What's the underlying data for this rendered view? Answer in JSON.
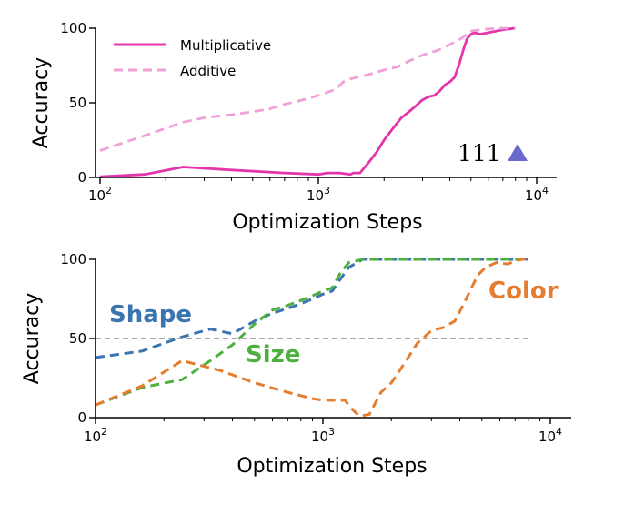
{
  "chart_data": [
    {
      "type": "line",
      "xlabel": "Optimization Steps",
      "ylabel": "Accuracy",
      "xscale": "log",
      "xlim": [
        100,
        12000
      ],
      "ylim": [
        0,
        100
      ],
      "xticks": [
        100,
        1000,
        10000
      ],
      "xtick_labels": [
        "10",
        "10",
        "10"
      ],
      "xtick_exponents": [
        "2",
        "3",
        "4"
      ],
      "yticks": [
        0,
        50,
        100
      ],
      "ytick_labels": [
        "0",
        "50",
        "100"
      ],
      "legend": {
        "placement": "top-left",
        "entries": [
          "Multiplicative",
          "Additive"
        ]
      },
      "annotation": {
        "text": "111",
        "marker": "triangle",
        "marker_color": "#6a6acd"
      },
      "series": [
        {
          "name": "Multiplicative",
          "color": "#e535ab",
          "dash": "solid",
          "points": [
            [
              100,
              0.5
            ],
            [
              160,
              2
            ],
            [
              240,
              7
            ],
            [
              400,
              5
            ],
            [
              700,
              3
            ],
            [
              1000,
              2
            ],
            [
              1100,
              3
            ],
            [
              1250,
              3
            ],
            [
              1400,
              2
            ],
            [
              1450,
              3
            ],
            [
              1550,
              3
            ],
            [
              1700,
              10
            ],
            [
              1850,
              17
            ],
            [
              2000,
              25
            ],
            [
              2200,
              33
            ],
            [
              2400,
              40
            ],
            [
              2600,
              44
            ],
            [
              2800,
              48
            ],
            [
              3000,
              52
            ],
            [
              3200,
              54
            ],
            [
              3400,
              55
            ],
            [
              3600,
              58
            ],
            [
              3800,
              62
            ],
            [
              4000,
              64
            ],
            [
              4200,
              67
            ],
            [
              4400,
              75
            ],
            [
              4600,
              85
            ],
            [
              4800,
              93
            ],
            [
              5000,
              96
            ],
            [
              5200,
              97
            ],
            [
              5500,
              96
            ],
            [
              6000,
              97
            ],
            [
              6500,
              98
            ],
            [
              7000,
              99
            ],
            [
              7500,
              99.5
            ],
            [
              8000,
              100
            ]
          ]
        },
        {
          "name": "Additive",
          "color": "#f1a0d8",
          "dash": "dashed",
          "points": [
            [
              100,
              18
            ],
            [
              160,
              28
            ],
            [
              240,
              37
            ],
            [
              300,
              40
            ],
            [
              400,
              42
            ],
            [
              500,
              44
            ],
            [
              600,
              46
            ],
            [
              700,
              49
            ],
            [
              800,
              51
            ],
            [
              900,
              53
            ],
            [
              1000,
              55
            ],
            [
              1100,
              57
            ],
            [
              1200,
              59
            ],
            [
              1300,
              64
            ],
            [
              1400,
              66
            ],
            [
              1600,
              68
            ],
            [
              1800,
              70
            ],
            [
              2000,
              72
            ],
            [
              2300,
              74
            ],
            [
              2600,
              78
            ],
            [
              3000,
              82
            ],
            [
              3500,
              85
            ],
            [
              4000,
              89
            ],
            [
              4500,
              93
            ],
            [
              5000,
              98
            ],
            [
              5500,
              99
            ],
            [
              6000,
              99.5
            ],
            [
              7000,
              100
            ],
            [
              8000,
              100
            ]
          ]
        }
      ]
    },
    {
      "type": "line",
      "xlabel": "Optimization Steps",
      "ylabel": "Accuracy",
      "xscale": "log",
      "xlim": [
        100,
        12000
      ],
      "ylim": [
        0,
        100
      ],
      "xticks": [
        100,
        1000,
        10000
      ],
      "xtick_labels": [
        "10",
        "10",
        "10"
      ],
      "xtick_exponents": [
        "2",
        "3",
        "4"
      ],
      "yticks": [
        0,
        50,
        100
      ],
      "ytick_labels": [
        "0",
        "50",
        "100"
      ],
      "reference_line": {
        "y": 50,
        "style": "dashed",
        "color": "#888888"
      },
      "series": [
        {
          "name": "Shape",
          "color": "#3b75af",
          "dash": "dashed",
          "points": [
            [
              100,
              38
            ],
            [
              160,
              42
            ],
            [
              240,
              51
            ],
            [
              320,
              56
            ],
            [
              400,
              53
            ],
            [
              500,
              61
            ],
            [
              600,
              66
            ],
            [
              700,
              69
            ],
            [
              800,
              72
            ],
            [
              900,
              75
            ],
            [
              1000,
              78
            ],
            [
              1100,
              80
            ],
            [
              1200,
              88
            ],
            [
              1300,
              95
            ],
            [
              1500,
              100
            ],
            [
              2000,
              100
            ],
            [
              3000,
              100
            ],
            [
              5000,
              100
            ],
            [
              8000,
              100
            ]
          ]
        },
        {
          "name": "Size",
          "color": "#4daf3e",
          "dash": "dashed",
          "points": [
            [
              100,
              8
            ],
            [
              160,
              19
            ],
            [
              240,
              24
            ],
            [
              320,
              36
            ],
            [
              400,
              46
            ],
            [
              500,
              59
            ],
            [
              600,
              68
            ],
            [
              700,
              71
            ],
            [
              800,
              74
            ],
            [
              900,
              77
            ],
            [
              1000,
              80
            ],
            [
              1100,
              82
            ],
            [
              1200,
              92
            ],
            [
              1300,
              98
            ],
            [
              1500,
              100
            ],
            [
              2000,
              100
            ],
            [
              3000,
              100
            ],
            [
              5000,
              100
            ],
            [
              8000,
              100
            ]
          ]
        },
        {
          "name": "Color",
          "color": "#e57c2e",
          "dash": "dashed",
          "points": [
            [
              100,
              8
            ],
            [
              160,
              20
            ],
            [
              240,
              36
            ],
            [
              350,
              30
            ],
            [
              500,
              22
            ],
            [
              700,
              16
            ],
            [
              900,
              12
            ],
            [
              1000,
              11
            ],
            [
              1100,
              11
            ],
            [
              1250,
              11
            ],
            [
              1350,
              5
            ],
            [
              1450,
              1
            ],
            [
              1600,
              2
            ],
            [
              1800,
              16
            ],
            [
              2000,
              22
            ],
            [
              2300,
              35
            ],
            [
              2600,
              47
            ],
            [
              3000,
              55
            ],
            [
              3400,
              57
            ],
            [
              3800,
              61
            ],
            [
              4200,
              73
            ],
            [
              4500,
              82
            ],
            [
              4800,
              90
            ],
            [
              5200,
              95
            ],
            [
              5800,
              98
            ],
            [
              6500,
              97
            ],
            [
              7000,
              99
            ],
            [
              7500,
              100
            ],
            [
              8000,
              100
            ]
          ]
        }
      ]
    }
  ],
  "labels": {
    "shape": "Shape",
    "size": "Size",
    "color": "Color"
  }
}
